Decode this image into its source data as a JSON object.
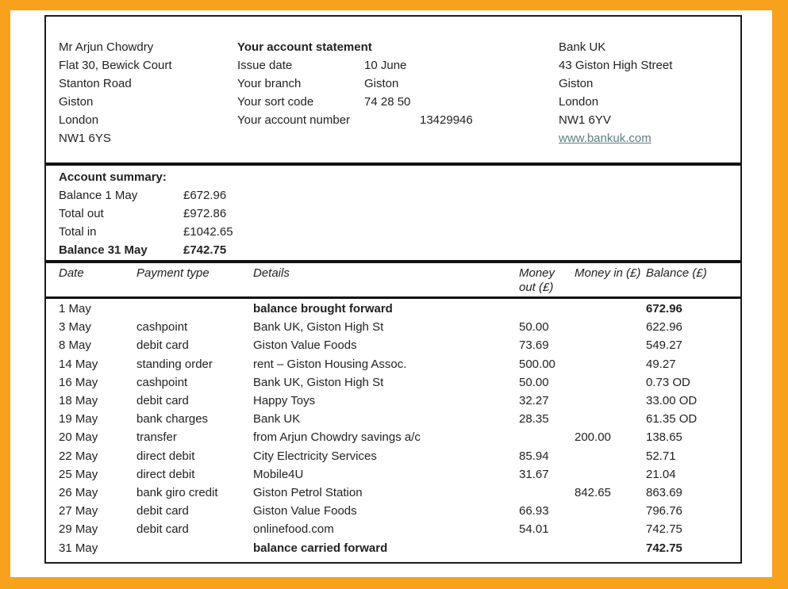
{
  "colors": {
    "frame_orange": "#F8A11C",
    "link": "#5f7d85",
    "text": "#222222",
    "rule": "#111111"
  },
  "customer": {
    "address": [
      "Mr Arjun Chowdry",
      "Flat 30, Bewick Court",
      "Stanton Road",
      "Giston",
      "London",
      "NW1 6YS"
    ]
  },
  "statement": {
    "title": "Your account statement",
    "fields": [
      {
        "label": "Issue date",
        "value": "10 June"
      },
      {
        "label": "Your branch",
        "value": "Giston"
      },
      {
        "label": "Your sort code",
        "value": "74 28 50"
      },
      {
        "label": "Your account number",
        "value": "13429946"
      }
    ]
  },
  "bank": {
    "address": [
      "Bank UK",
      "43 Giston High Street",
      "Giston",
      "London",
      "NW1 6YV"
    ],
    "website": "www.bankuk.com"
  },
  "summary": {
    "title": "Account summary:",
    "rows": [
      {
        "label": "Balance 1 May",
        "value": "£672.96",
        "bold": false
      },
      {
        "label": "Total out",
        "value": "£972.86",
        "bold": false
      },
      {
        "label": "Total in",
        "value": "£1042.65",
        "bold": false
      },
      {
        "label": "Balance 31 May",
        "value": "£742.75",
        "bold": true
      }
    ]
  },
  "table": {
    "headers": [
      "Date",
      "Payment type",
      "Details",
      "Money out (£)",
      "Money in (£)",
      "Balance (£)"
    ],
    "rows": [
      {
        "date": "1 May",
        "payment_type": "",
        "details": "balance brought forward",
        "money_out": "",
        "money_in": "",
        "balance": "672.96",
        "bold": true
      },
      {
        "date": "3 May",
        "payment_type": "cashpoint",
        "details": "Bank UK, Giston High St",
        "money_out": "50.00",
        "money_in": "",
        "balance": "622.96",
        "bold": false
      },
      {
        "date": "8 May",
        "payment_type": "debit card",
        "details": "Giston Value Foods",
        "money_out": "73.69",
        "money_in": "",
        "balance": "549.27",
        "bold": false
      },
      {
        "date": "14 May",
        "payment_type": "standing order",
        "details": "rent – Giston Housing Assoc.",
        "money_out": "500.00",
        "money_in": "",
        "balance": "49.27",
        "bold": false
      },
      {
        "date": "16 May",
        "payment_type": "cashpoint",
        "details": "Bank UK, Giston High St",
        "money_out": "50.00",
        "money_in": "",
        "balance": "0.73 OD",
        "bold": false
      },
      {
        "date": "18 May",
        "payment_type": "debit card",
        "details": "Happy Toys",
        "money_out": "32.27",
        "money_in": "",
        "balance": "33.00 OD",
        "bold": false
      },
      {
        "date": "19 May",
        "payment_type": "bank charges",
        "details": "Bank UK",
        "money_out": "28.35",
        "money_in": "",
        "balance": "61.35 OD",
        "bold": false
      },
      {
        "date": "20 May",
        "payment_type": "transfer",
        "details": "from Arjun Chowdry savings a/c",
        "money_out": "",
        "money_in": "200.00",
        "balance": "138.65",
        "bold": false
      },
      {
        "date": "22 May",
        "payment_type": "direct debit",
        "details": "City Electricity Services",
        "money_out": "85.94",
        "money_in": "",
        "balance": "52.71",
        "bold": false
      },
      {
        "date": "25 May",
        "payment_type": "direct debit",
        "details": "Mobile4U",
        "money_out": "31.67",
        "money_in": "",
        "balance": "21.04",
        "bold": false
      },
      {
        "date": "26 May",
        "payment_type": "bank giro credit",
        "details": "Giston Petrol Station",
        "money_out": "",
        "money_in": "842.65",
        "balance": "863.69",
        "bold": false
      },
      {
        "date": "27 May",
        "payment_type": "debit card",
        "details": "Giston Value Foods",
        "money_out": "66.93",
        "money_in": "",
        "balance": "796.76",
        "bold": false
      },
      {
        "date": "29 May",
        "payment_type": "debit card",
        "details": "onlinefood.com",
        "money_out": "54.01",
        "money_in": "",
        "balance": "742.75",
        "bold": false
      },
      {
        "date": "31 May",
        "payment_type": "",
        "details": "balance carried forward",
        "money_out": "",
        "money_in": "",
        "balance": "742.75",
        "bold": true
      }
    ]
  }
}
